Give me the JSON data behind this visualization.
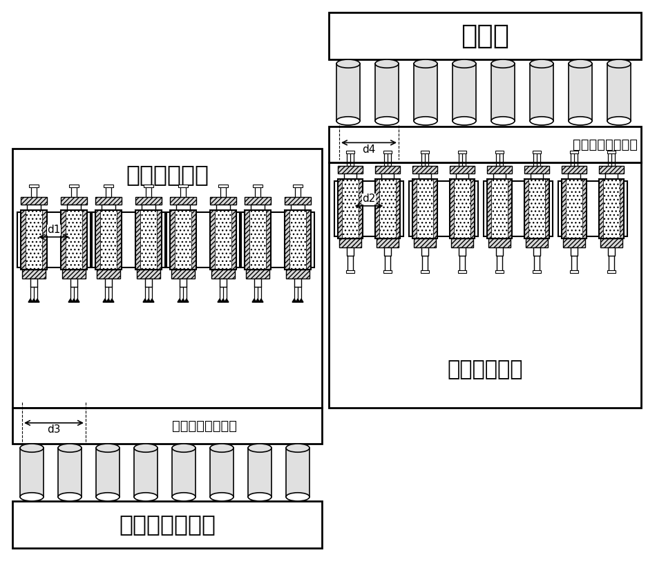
{
  "label_first_array": "第一光纤阵列",
  "label_second_array": "第二光纤阵列",
  "label_tx_amp": "发射信号放大模块",
  "label_rx_amp": "接收信号放大模块",
  "label_awg": "任意波形发生器",
  "label_bert": "误码仪",
  "label_d1": "d1",
  "label_d2": "d2",
  "label_d3": "d3",
  "label_d4": "d4",
  "bg_color": "#ffffff",
  "ec": "#000000",
  "text_color": "#000000",
  "fig_w": 9.51,
  "fig_h": 8.16,
  "dpi": 100
}
